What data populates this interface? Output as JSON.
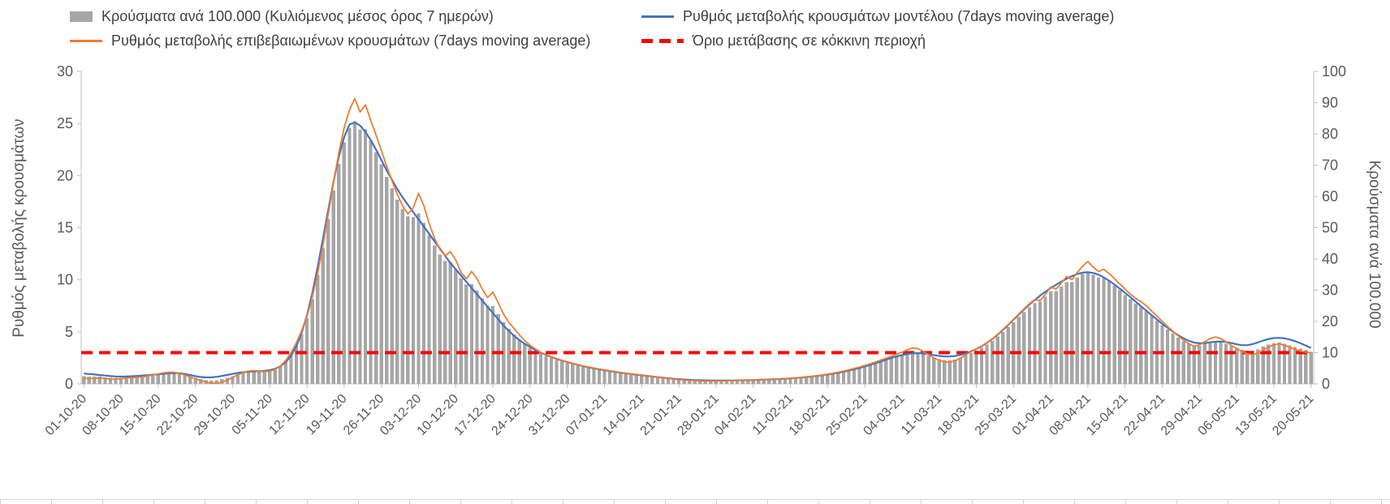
{
  "legend": {
    "items": [
      {
        "label": "Κρούσματα ανά 100.000 (Κυλιόμενος μέσος όρος 7 ημερών)",
        "swatch": "bar",
        "color": "#a6a6a6"
      },
      {
        "label": "Ρυθμός μεταβολής κρουσμάτων μοντέλου (7days moving average)",
        "swatch": "line",
        "color": "#4472c4"
      },
      {
        "label": "Ρυθμός μεταβολής επιβεβαιωμένων κρουσμάτων (7days moving average)",
        "swatch": "line",
        "color": "#ed7d31"
      },
      {
        "label": "Όριο μετάβασης σε κόκκινη περιοχή",
        "swatch": "dashed",
        "color": "#ff0000"
      }
    ]
  },
  "chart_data": {
    "type": "bar+line combo",
    "x_unit": "day",
    "x_start": "01-10-20",
    "x_end": "20-05-21",
    "x_tick_every": 7,
    "x_tick_labels": [
      "01-10-20",
      "08-10-20",
      "15-10-20",
      "22-10-20",
      "29-10-20",
      "05-11-20",
      "12-11-20",
      "19-11-20",
      "26-11-20",
      "03-12-20",
      "10-12-20",
      "17-12-20",
      "24-12-20",
      "31-12-20",
      "07-01-21",
      "14-01-21",
      "21-01-21",
      "28-01-21",
      "04-02-21",
      "11-02-21",
      "18-02-21",
      "25-02-21",
      "04-03-21",
      "11-03-21",
      "18-03-21",
      "25-03-21",
      "01-04-21",
      "08-04-21",
      "15-04-21",
      "22-04-21",
      "29-04-21",
      "06-05-21",
      "13-05-21",
      "20-05-21"
    ],
    "left_axis": {
      "label": "Ρυθμός μεταβολής κρουσμάτων",
      "min": 0,
      "max": 30,
      "ticks": [
        0,
        5,
        10,
        15,
        20,
        25,
        30
      ]
    },
    "right_axis": {
      "label": "Κρούσματα ανά 100.000",
      "min": 0,
      "max": 100,
      "ticks": [
        0,
        10,
        20,
        30,
        40,
        50,
        60,
        70,
        80,
        90,
        100
      ]
    },
    "threshold": {
      "label": "Όριο μετάβασης σε κόκκινη περιοχή",
      "axis": "left",
      "value": 3,
      "color": "#ff0000",
      "style": "dashed"
    },
    "series": [
      {
        "name": "Κρούσματα ανά 100.000 (Κυλιόμενος μέσος όρος 7 ημερών)",
        "type": "bar",
        "axis": "right",
        "color": "#a6a6a6",
        "values": [
          2.5,
          2.3,
          2.3,
          2.3,
          2.1,
          2.0,
          1.9,
          1.9,
          2.0,
          2.1,
          2.2,
          2.4,
          2.6,
          2.8,
          3.0,
          3.2,
          3.4,
          3.4,
          3.2,
          2.9,
          2.4,
          2.0,
          1.5,
          1.2,
          1.1,
          1.2,
          1.5,
          2.0,
          2.5,
          3.1,
          3.5,
          3.8,
          4.0,
          3.9,
          3.9,
          4.1,
          4.5,
          5.5,
          7.0,
          9.1,
          12.1,
          16.0,
          21.0,
          27.2,
          34.9,
          43.5,
          52.8,
          61.9,
          70.4,
          77.3,
          81.9,
          84.0,
          81.4,
          81.6,
          77.9,
          74.2,
          70.2,
          66.2,
          62.6,
          59.0,
          56.0,
          53.6,
          53.4,
          54.6,
          51.5,
          47.7,
          44.3,
          41.4,
          39.4,
          38.9,
          36.6,
          33.8,
          31.8,
          32.0,
          29.9,
          27.4,
          25.1,
          25.0,
          22.4,
          19.7,
          17.6,
          15.8,
          14.2,
          12.8,
          11.6,
          10.6,
          9.7,
          8.9,
          8.3,
          7.7,
          7.2,
          6.7,
          6.3,
          5.9,
          5.5,
          5.2,
          4.8,
          4.5,
          4.2,
          4.0,
          3.7,
          3.5,
          3.3,
          3.1,
          2.9,
          2.7,
          2.5,
          2.3,
          2.0,
          1.9,
          1.7,
          1.5,
          1.4,
          1.3,
          1.2,
          1.1,
          1.0,
          1.0,
          1.0,
          0.9,
          1.0,
          1.0,
          1.0,
          1.1,
          1.1,
          1.2,
          1.2,
          1.3,
          1.3,
          1.4,
          1.5,
          1.5,
          1.6,
          1.7,
          1.8,
          2.0,
          2.1,
          2.3,
          2.5,
          2.7,
          2.9,
          3.2,
          3.5,
          3.8,
          4.2,
          4.6,
          5.0,
          5.5,
          6.0,
          6.5,
          7.1,
          7.7,
          8.2,
          8.8,
          9.3,
          9.8,
          10.2,
          10.1,
          9.7,
          9.0,
          8.4,
          7.9,
          7.6,
          7.5,
          7.8,
          8.4,
          9.1,
          9.9,
          10.7,
          11.6,
          12.6,
          13.8,
          15.2,
          16.6,
          18.2,
          19.8,
          21.4,
          23.0,
          24.5,
          25.9,
          26.4,
          27.9,
          29.6,
          29.8,
          31.2,
          32.6,
          32.6,
          34.0,
          35.2,
          36.0,
          35.0,
          34.0,
          34.0,
          32.8,
          31.4,
          30.0,
          28.5,
          27.1,
          25.7,
          24.6,
          23.2,
          21.8,
          20.3,
          18.8,
          17.4,
          16.1,
          14.8,
          13.7,
          12.8,
          12.1,
          12.2,
          12.8,
          13.3,
          13.7,
          13.5,
          12.9,
          12.2,
          11.5,
          10.9,
          10.6,
          10.6,
          11.1,
          11.9,
          12.6,
          13.0,
          13.2,
          12.9,
          12.4,
          11.8,
          11.3,
          10.8,
          10.3
        ]
      },
      {
        "name": "Ρυθμός μεταβολής κρουσμάτων μοντέλου (7days moving average)",
        "type": "line",
        "axis": "left",
        "color": "#4472c4",
        "values": [
          1.0,
          0.95,
          0.9,
          0.85,
          0.8,
          0.75,
          0.72,
          0.7,
          0.71,
          0.73,
          0.76,
          0.8,
          0.84,
          0.88,
          0.92,
          0.97,
          1.01,
          1.04,
          1.02,
          0.95,
          0.85,
          0.74,
          0.66,
          0.62,
          0.63,
          0.68,
          0.76,
          0.86,
          0.96,
          1.05,
          1.12,
          1.17,
          1.2,
          1.22,
          1.25,
          1.32,
          1.45,
          1.7,
          2.1,
          2.7,
          3.6,
          4.9,
          6.6,
          8.7,
          11.2,
          13.9,
          16.7,
          19.4,
          21.8,
          23.7,
          24.9,
          25.1,
          24.8,
          24.2,
          23.4,
          22.5,
          21.5,
          20.5,
          19.6,
          18.7,
          17.9,
          17.2,
          16.5,
          15.8,
          15.1,
          14.4,
          13.7,
          13.0,
          12.3,
          11.6,
          11.0,
          10.4,
          9.8,
          9.2,
          8.6,
          8.0,
          7.4,
          6.8,
          6.2,
          5.6,
          5.1,
          4.6,
          4.2,
          3.85,
          3.55,
          3.25,
          3.0,
          2.78,
          2.58,
          2.4,
          2.24,
          2.1,
          1.96,
          1.83,
          1.71,
          1.6,
          1.5,
          1.4,
          1.31,
          1.23,
          1.15,
          1.08,
          1.01,
          0.95,
          0.89,
          0.83,
          0.77,
          0.71,
          0.65,
          0.59,
          0.54,
          0.49,
          0.45,
          0.42,
          0.39,
          0.37,
          0.35,
          0.34,
          0.33,
          0.32,
          0.32,
          0.32,
          0.33,
          0.34,
          0.35,
          0.36,
          0.37,
          0.39,
          0.41,
          0.43,
          0.45,
          0.47,
          0.5,
          0.53,
          0.57,
          0.61,
          0.66,
          0.71,
          0.77,
          0.83,
          0.9,
          0.98,
          1.07,
          1.17,
          1.28,
          1.4,
          1.53,
          1.67,
          1.82,
          1.98,
          2.15,
          2.32,
          2.49,
          2.64,
          2.77,
          2.87,
          2.93,
          2.95,
          2.92,
          2.85,
          2.76,
          2.68,
          2.63,
          2.63,
          2.68,
          2.78,
          2.93,
          3.12,
          3.35,
          3.62,
          3.94,
          4.3,
          4.72,
          5.18,
          5.66,
          6.16,
          6.66,
          7.15,
          7.62,
          8.06,
          8.47,
          8.85,
          9.2,
          9.52,
          9.82,
          10.1,
          10.35,
          10.55,
          10.68,
          10.72,
          10.65,
          10.48,
          10.22,
          9.9,
          9.54,
          9.15,
          8.74,
          8.32,
          7.89,
          7.46,
          7.03,
          6.6,
          6.18,
          5.77,
          5.38,
          5.01,
          4.67,
          4.37,
          4.13,
          3.97,
          3.9,
          3.92,
          3.99,
          4.05,
          4.07,
          4.02,
          3.92,
          3.8,
          3.72,
          3.72,
          3.82,
          3.98,
          4.16,
          4.31,
          4.4,
          4.42,
          4.37,
          4.26,
          4.1,
          3.9,
          3.68,
          3.45
        ]
      },
      {
        "name": "Ρυθμός μεταβολής επιβεβαιωμένων κρουσμάτων (7days moving average)",
        "type": "line",
        "axis": "left",
        "color": "#ed7d31",
        "values": [
          0.55,
          0.5,
          0.52,
          0.58,
          0.52,
          0.47,
          0.45,
          0.5,
          0.56,
          0.6,
          0.63,
          0.68,
          0.76,
          0.86,
          0.96,
          1.06,
          1.12,
          1.1,
          1.0,
          0.86,
          0.68,
          0.48,
          0.3,
          0.16,
          0.08,
          0.06,
          0.16,
          0.36,
          0.62,
          0.88,
          1.08,
          1.22,
          1.28,
          1.24,
          1.18,
          1.22,
          1.38,
          1.72,
          2.25,
          3.0,
          3.95,
          5.1,
          6.5,
          8.3,
          10.6,
          13.3,
          16.3,
          19.3,
          22.2,
          24.6,
          26.3,
          27.4,
          26.1,
          26.8,
          25.3,
          23.9,
          22.4,
          20.9,
          19.5,
          18.2,
          17.1,
          16.3,
          16.9,
          18.3,
          17.1,
          15.4,
          14.0,
          12.9,
          12.3,
          12.7,
          11.9,
          10.7,
          10.1,
          10.8,
          10.1,
          9.1,
          8.3,
          8.8,
          7.8,
          6.7,
          5.9,
          5.3,
          4.7,
          4.15,
          3.7,
          3.35,
          3.05,
          2.8,
          2.6,
          2.42,
          2.26,
          2.1,
          1.96,
          1.84,
          1.72,
          1.62,
          1.52,
          1.42,
          1.34,
          1.26,
          1.18,
          1.1,
          1.03,
          0.96,
          0.9,
          0.84,
          0.77,
          0.7,
          0.63,
          0.57,
          0.51,
          0.46,
          0.41,
          0.37,
          0.34,
          0.31,
          0.29,
          0.28,
          0.27,
          0.27,
          0.28,
          0.29,
          0.31,
          0.33,
          0.35,
          0.36,
          0.38,
          0.4,
          0.42,
          0.44,
          0.46,
          0.48,
          0.51,
          0.54,
          0.58,
          0.62,
          0.67,
          0.72,
          0.78,
          0.85,
          0.93,
          1.02,
          1.12,
          1.23,
          1.35,
          1.48,
          1.62,
          1.77,
          1.93,
          2.1,
          2.28,
          2.47,
          2.66,
          2.85,
          3.05,
          3.28,
          3.45,
          3.38,
          3.12,
          2.8,
          2.5,
          2.26,
          2.1,
          2.08,
          2.22,
          2.48,
          2.78,
          3.08,
          3.36,
          3.64,
          3.95,
          4.32,
          4.75,
          5.22,
          5.7,
          6.2,
          6.72,
          7.22,
          7.7,
          8.1,
          8.0,
          8.6,
          9.3,
          9.1,
          9.7,
          10.3,
          10.0,
          10.7,
          11.3,
          11.75,
          11.2,
          10.8,
          11.0,
          10.6,
          10.1,
          9.6,
          9.1,
          8.6,
          8.2,
          7.9,
          7.5,
          7.0,
          6.5,
          6.0,
          5.5,
          5.05,
          4.6,
          4.2,
          3.85,
          3.6,
          3.75,
          4.05,
          4.35,
          4.5,
          4.35,
          4.05,
          3.7,
          3.4,
          3.1,
          2.9,
          2.8,
          2.95,
          3.25,
          3.55,
          3.75,
          3.85,
          3.7,
          3.5,
          3.3,
          3.15,
          3.05,
          3.0
        ]
      }
    ]
  }
}
